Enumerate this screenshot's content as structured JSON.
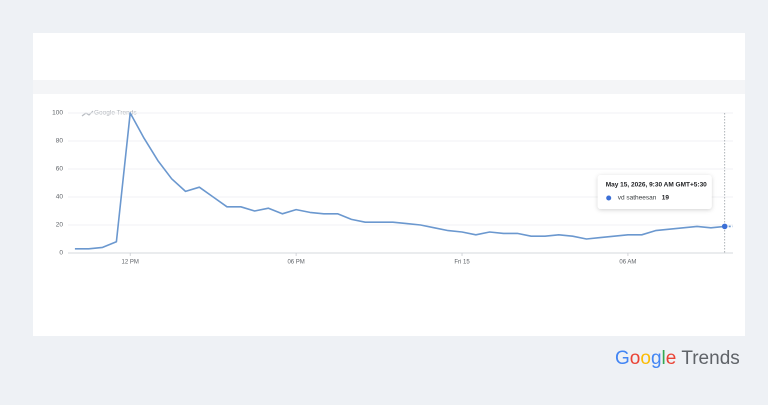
{
  "chart_data": {
    "type": "line",
    "watermark": "Google Trends",
    "x": [
      10,
      10.5,
      11,
      11.5,
      12,
      12.5,
      13,
      13.5,
      14,
      14.5,
      15,
      15.5,
      16,
      16.5,
      17,
      17.5,
      18,
      18.5,
      19,
      19.5,
      20,
      20.5,
      21,
      21.5,
      22,
      22.5,
      23,
      23.5,
      24,
      24.5,
      25,
      25.5,
      26,
      26.5,
      27,
      27.5,
      28,
      28.5,
      29,
      29.5,
      30,
      30.5,
      31,
      31.5,
      32,
      32.5,
      33,
      33.5
    ],
    "series": [
      {
        "name": "vd satheesan",
        "color": "#6b98cf",
        "values": [
          3,
          3,
          4,
          8,
          100,
          82,
          66,
          53,
          44,
          47,
          40,
          33,
          33,
          30,
          32,
          28,
          31,
          29,
          28,
          28,
          24,
          22,
          22,
          22,
          21,
          20,
          18,
          16,
          15,
          13,
          15,
          14,
          14,
          12,
          12,
          13,
          12,
          10,
          11,
          12,
          13,
          13,
          16,
          17,
          18,
          19,
          18,
          19
        ]
      }
    ],
    "xlim": [
      9.75,
      33.8
    ],
    "xticks": [
      {
        "value": 12,
        "label": "12 PM"
      },
      {
        "value": 18,
        "label": "06 PM"
      },
      {
        "value": 24,
        "label": "Fri 15"
      },
      {
        "value": 30,
        "label": "06 AM"
      }
    ],
    "ylim": [
      0,
      100
    ],
    "yticks": [
      0,
      20,
      40,
      60,
      80,
      100
    ],
    "grid": true,
    "tooltip": {
      "date": "May 15, 2026, 9:30 AM GMT+5:30",
      "point": 47,
      "dot_color": "#3b6fd6"
    }
  },
  "logo": {
    "brand": "Google",
    "product": "Trends"
  }
}
